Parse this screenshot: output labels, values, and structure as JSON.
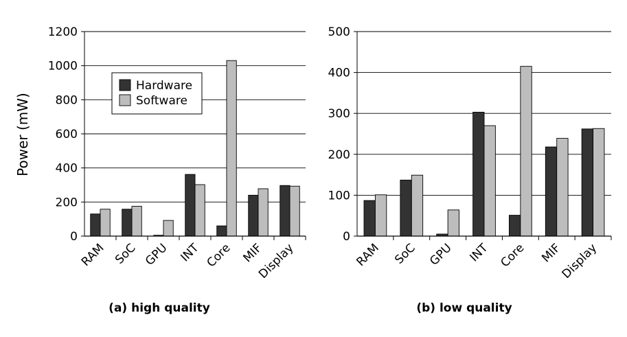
{
  "y_axis_label": "Power (mW)",
  "chart_data": [
    {
      "type": "bar",
      "caption": "(a) high quality",
      "categories": [
        "RAM",
        "SoC",
        "GPU",
        "INT",
        "Core",
        "MIF",
        "Display"
      ],
      "series": [
        {
          "name": "Hardware",
          "values": [
            130,
            158,
            5,
            362,
            60,
            240,
            297
          ],
          "color": "#333333"
        },
        {
          "name": "Software",
          "values": [
            158,
            175,
            92,
            302,
            1030,
            278,
            293
          ],
          "color": "#bdbdbd"
        }
      ],
      "ylabel": "Power (mW)",
      "ylim": [
        0,
        1200
      ],
      "yticks": [
        0,
        200,
        400,
        600,
        800,
        1000,
        1200
      ],
      "grid": true,
      "legend_position": "upper-left"
    },
    {
      "type": "bar",
      "caption": "(b) low quality",
      "categories": [
        "RAM",
        "SoC",
        "GPU",
        "INT",
        "Core",
        "MIF",
        "Display"
      ],
      "series": [
        {
          "name": "Hardware",
          "values": [
            87,
            137,
            5,
            303,
            51,
            218,
            262
          ],
          "color": "#333333"
        },
        {
          "name": "Software",
          "values": [
            101,
            149,
            64,
            270,
            415,
            239,
            263
          ],
          "color": "#bdbdbd"
        }
      ],
      "ylim": [
        0,
        500
      ],
      "yticks": [
        0,
        100,
        200,
        300,
        400,
        500
      ],
      "grid": true
    }
  ]
}
